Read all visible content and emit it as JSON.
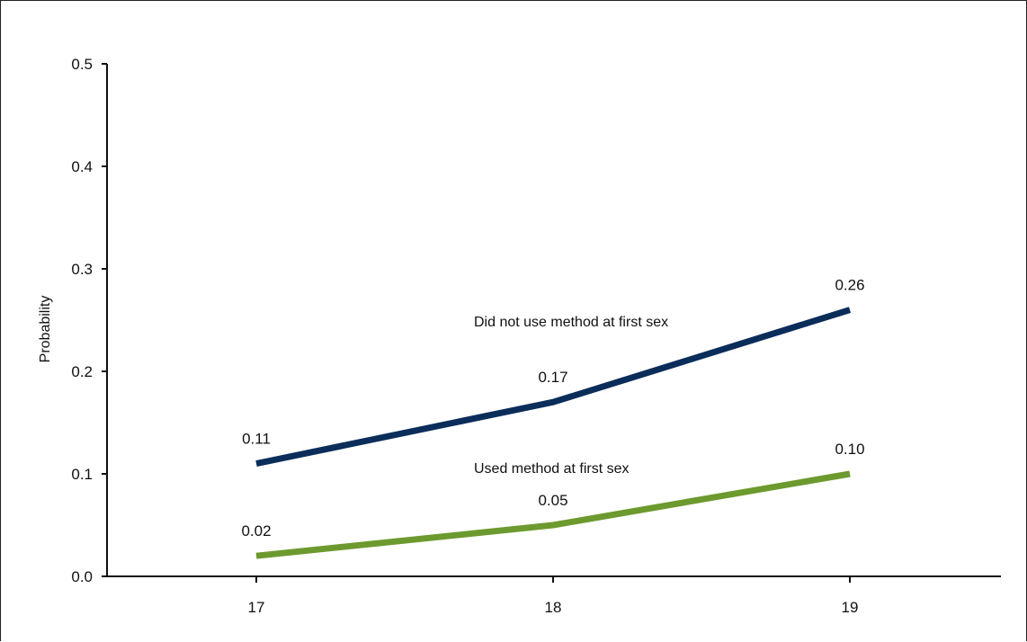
{
  "chart_data": {
    "type": "line",
    "title": "",
    "xlabel": "",
    "ylabel": "Probability",
    "x": [
      17,
      18,
      19
    ],
    "x_tick_labels": [
      "17",
      "18",
      "19"
    ],
    "y_tick_labels": [
      "0.0",
      "0.1",
      "0.2",
      "0.3",
      "0.4",
      "0.5"
    ],
    "ylim": [
      0,
      0.5
    ],
    "grid": false,
    "series": [
      {
        "name": "Did not use method at first sex",
        "values": [
          0.11,
          0.17,
          0.26
        ],
        "data_labels": [
          "0.11",
          "0.17",
          "0.26"
        ],
        "color": "#0b2d5a"
      },
      {
        "name": "Used method at first sex",
        "values": [
          0.02,
          0.05,
          0.1
        ],
        "data_labels": [
          "0.02",
          "0.05",
          "0.10"
        ],
        "color": "#6c9a2e"
      }
    ]
  }
}
